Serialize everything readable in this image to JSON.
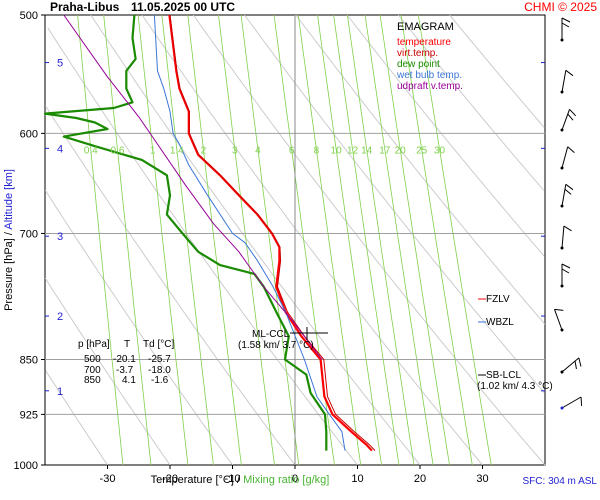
{
  "header": {
    "station": "Praha-Libus",
    "datetime": "11.05.2025 00 UTC",
    "credit": "CHMI © 2025",
    "sfc": "SFC: 304 m ASL"
  },
  "legend": {
    "title": "EMAGRAM",
    "items": [
      {
        "label": "temperature",
        "color": "#ff0000"
      },
      {
        "label": "virt.temp.",
        "color": "#cc0000"
      },
      {
        "label": "dew point",
        "color": "#1a8a00"
      },
      {
        "label": "wet bulb temp.",
        "color": "#3b76d8"
      },
      {
        "label": "udpraft v.temp.",
        "color": "#990099"
      }
    ]
  },
  "axes": {
    "ylabel_left": "Pressure [hPa]",
    "ylabel_sep": " / ",
    "ylabel_right": "Altitude [km]",
    "xlabel_left": "Temperature [°C]",
    "xlabel_sep": " / ",
    "xlabel_right": "Mixing ratio [g/kg]"
  },
  "table": {
    "headers": [
      "p [hPa]",
      "T",
      "Td [°C]"
    ],
    "rows": [
      [
        "500",
        "-20.1",
        "-25.7"
      ],
      [
        "700",
        "-3.7",
        "-18.0"
      ],
      [
        "850",
        "4.1",
        "-1.6"
      ]
    ]
  },
  "annotations": {
    "ml_lcl": "ML-CCL",
    "ml_lcl_sub": "(1.58 km/ 3.7 °C)",
    "fzlv": "FZLV",
    "wbzl": "WBZL",
    "sb_lcl": "SB-LCL",
    "sb_lcl_sub": "(1.02 km/ 4.3 °C)"
  },
  "colors": {
    "temperature": "#ff0000",
    "virt_temp": "#cc0000",
    "dew_point": "#1a8a00",
    "wet_bulb": "#3b76d8",
    "updraft": "#990099",
    "mixing": "#7fd14b",
    "dry_adiabat": "#cccccc",
    "altitude": "#1f1fd0",
    "grid": "#a0a0a0"
  },
  "chart_data": {
    "type": "line",
    "title": "EMAGRAM",
    "xlabel": "Temperature [°C] / Mixing ratio [g/kg]",
    "ylabel": "Pressure [hPa] / Altitude [km]",
    "xlim": [
      -40,
      40
    ],
    "ylim": [
      1000,
      500
    ],
    "y_scale": "log",
    "grid": true,
    "x_ticks": [
      -30,
      -20,
      -10,
      0,
      10,
      20,
      30
    ],
    "pressure_ticks": [
      500,
      600,
      700,
      850,
      925,
      1000
    ],
    "altitude_ticks": [
      {
        "km": 1,
        "p": 892
      },
      {
        "km": 2,
        "p": 795
      },
      {
        "km": 3,
        "p": 703
      },
      {
        "km": 4,
        "p": 614
      },
      {
        "km": 5,
        "p": 538
      }
    ],
    "mixing_ratio_labels": [
      "0.4",
      "0.6",
      "1",
      "1.4",
      "2",
      "3",
      "4",
      "6",
      "8",
      "10",
      "12",
      "14",
      "17",
      "20",
      "25",
      "30"
    ],
    "mixing_ratio_label_p": 615,
    "dry_adiabats_theta_c": [
      -30,
      -20,
      -10,
      0,
      10,
      20,
      30,
      40,
      50,
      60,
      70,
      80,
      90
    ],
    "series": [
      {
        "name": "temperature",
        "points": [
          [
            12.3,
            978
          ],
          [
            11.5,
            970
          ],
          [
            9,
            950
          ],
          [
            6,
            925
          ],
          [
            4.7,
            900
          ],
          [
            4.1,
            850
          ],
          [
            1,
            820
          ],
          [
            -1.5,
            790
          ],
          [
            -3,
            760
          ],
          [
            -2.5,
            730
          ],
          [
            -2.5,
            715
          ],
          [
            -3.7,
            700
          ],
          [
            -6,
            680
          ],
          [
            -9,
            660
          ],
          [
            -12,
            640
          ],
          [
            -15.5,
            620
          ],
          [
            -17,
            600
          ],
          [
            -17,
            580
          ],
          [
            -18.5,
            560
          ],
          [
            -19,
            545
          ],
          [
            -20.1,
            500
          ]
        ]
      },
      {
        "name": "virt.temp.",
        "points": [
          [
            12.8,
            978
          ],
          [
            12,
            970
          ],
          [
            9.5,
            950
          ],
          [
            6.5,
            925
          ],
          [
            5.2,
            900
          ],
          [
            4.6,
            850
          ],
          [
            1.5,
            820
          ],
          [
            -1.2,
            790
          ],
          [
            -2.8,
            760
          ],
          [
            -2.3,
            730
          ],
          [
            -2.4,
            715
          ],
          [
            -3.6,
            700
          ],
          [
            -5.9,
            680
          ],
          [
            -8.9,
            660
          ],
          [
            -11.9,
            640
          ],
          [
            -15.4,
            620
          ],
          [
            -16.9,
            600
          ],
          [
            -16.9,
            580
          ],
          [
            -18.4,
            560
          ],
          [
            -18.9,
            545
          ],
          [
            -20,
            500
          ]
        ]
      },
      {
        "name": "dew point",
        "points": [
          [
            5,
            978
          ],
          [
            5,
            950
          ],
          [
            4.8,
            925
          ],
          [
            2.5,
            895
          ],
          [
            1.8,
            870
          ],
          [
            -1.6,
            850
          ],
          [
            -1,
            820
          ],
          [
            -3,
            790
          ],
          [
            -5,
            760
          ],
          [
            -6.5,
            745
          ],
          [
            -12,
            735
          ],
          [
            -15.5,
            720
          ],
          [
            -18,
            700
          ],
          [
            -20.5,
            680
          ],
          [
            -20,
            660
          ],
          [
            -20.5,
            640
          ],
          [
            -24.5,
            625
          ],
          [
            -32,
            612
          ],
          [
            -37,
            603
          ],
          [
            -30,
            596
          ],
          [
            -32,
            590
          ],
          [
            -35,
            586
          ],
          [
            -40,
            582
          ],
          [
            -29,
            577
          ],
          [
            -26,
            572
          ],
          [
            -27,
            560
          ],
          [
            -27,
            545
          ],
          [
            -25.5,
            535
          ],
          [
            -26,
            518
          ],
          [
            -25.7,
            500
          ]
        ]
      },
      {
        "name": "wet bulb temp.",
        "points": [
          [
            8,
            978
          ],
          [
            7.5,
            950
          ],
          [
            5.5,
            925
          ],
          [
            3.5,
            900
          ],
          [
            1.5,
            850
          ],
          [
            -1.5,
            790
          ],
          [
            -3.5,
            760
          ],
          [
            -6,
            730
          ],
          [
            -8,
            710
          ],
          [
            -10,
            700
          ],
          [
            -14,
            660
          ],
          [
            -17,
            630
          ],
          [
            -18.5,
            610
          ],
          [
            -19.5,
            600
          ],
          [
            -20,
            580
          ],
          [
            -21,
            560
          ],
          [
            -22,
            545
          ],
          [
            -22.5,
            500
          ]
        ]
      },
      {
        "name": "udpraft v.temp.",
        "points": [
          [
            4.3,
            850
          ],
          [
            -0.5,
            800
          ],
          [
            -5,
            760
          ],
          [
            -9,
            720
          ],
          [
            -13,
            690
          ],
          [
            -17.5,
            650
          ],
          [
            -22,
            610
          ],
          [
            -25,
            585
          ],
          [
            -30,
            550
          ],
          [
            -37,
            500
          ]
        ]
      }
    ]
  }
}
